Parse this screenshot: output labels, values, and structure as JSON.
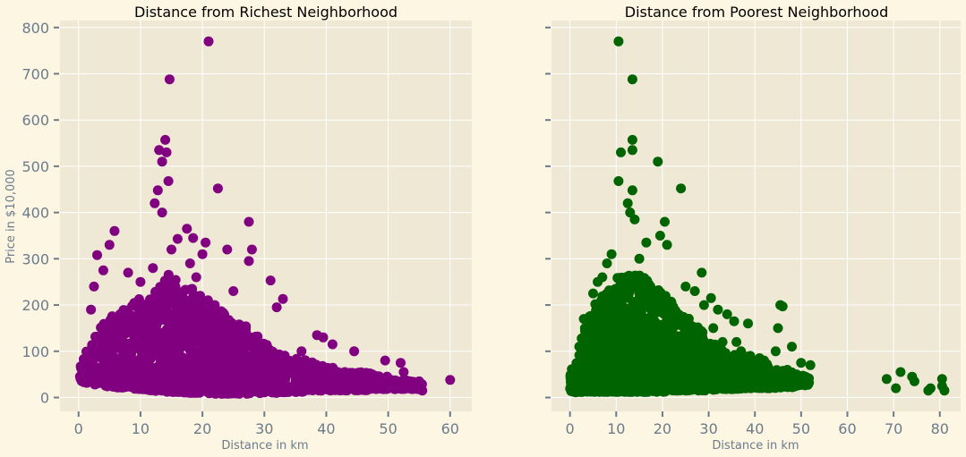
{
  "figure": {
    "background": "#fdf6e3",
    "plot_background": "#eee8d5",
    "grid_color": "#ffffff"
  },
  "chart_data": [
    {
      "type": "scatter",
      "title": "Distance from Richest Neighborhood",
      "xlabel": "Distance in km",
      "ylabel": "Price in $10,000",
      "xlim": [
        -3,
        63.5
      ],
      "ylim": [
        -30,
        815
      ],
      "xticks": [
        0,
        10,
        20,
        30,
        40,
        50,
        60
      ],
      "yticks": [
        0,
        100,
        200,
        300,
        400,
        500,
        600,
        700,
        800
      ],
      "grid": true,
      "color": "#800080",
      "series": [
        {
          "x": [
            21,
            14.7,
            14,
            13,
            14.2,
            13.5,
            14.5,
            22.5,
            12.8,
            12.3,
            13.5,
            27.5,
            5.8,
            16,
            17.5,
            18.5,
            20.5,
            3,
            5,
            4,
            24,
            28,
            27.5,
            31,
            33,
            25,
            2.5,
            8,
            10,
            2,
            15,
            20,
            32,
            36,
            38.5,
            39.5,
            41,
            44.5,
            49.5,
            52,
            52.5,
            53,
            55,
            55.5,
            60,
            47,
            43,
            35,
            30,
            28.5,
            26,
            24.5,
            22,
            19,
            17,
            15.5,
            11,
            9,
            7,
            6,
            4.5,
            3.5,
            1.5,
            0.5,
            1,
            2,
            12,
            18,
            23,
            29,
            34,
            37,
            40,
            42,
            45,
            48,
            51,
            53.5
          ],
          "y": [
            770,
            688,
            557,
            535,
            530,
            510,
            468,
            452,
            448,
            420,
            400,
            380,
            360,
            343,
            365,
            345,
            335,
            308,
            330,
            275,
            320,
            320,
            295,
            253,
            213,
            230,
            240,
            270,
            250,
            190,
            320,
            310,
            195,
            100,
            135,
            130,
            115,
            100,
            80,
            75,
            55,
            20,
            35,
            15,
            38,
            40,
            55,
            60,
            70,
            110,
            130,
            150,
            200,
            260,
            230,
            210,
            180,
            160,
            150,
            140,
            120,
            100,
            80,
            50,
            40,
            90,
            280,
            290,
            180,
            120,
            70,
            60,
            50,
            45,
            40,
            35,
            30,
            25
          ]
        }
      ],
      "bands": [
        {
          "x": [
            0,
            2,
            4,
            6,
            8,
            10,
            12,
            14,
            16,
            18,
            20,
            22,
            24,
            26,
            28,
            30,
            32,
            34,
            36,
            38,
            40,
            42,
            44,
            46,
            48,
            50,
            52,
            54,
            55.5
          ],
          "low": [
            35,
            30,
            25,
            22,
            20,
            18,
            15,
            12,
            12,
            10,
            10,
            8,
            8,
            8,
            8,
            10,
            10,
            12,
            12,
            15,
            15,
            15,
            15,
            15,
            18,
            18,
            18,
            18,
            18
          ],
          "high": [
            65,
            120,
            160,
            185,
            200,
            215,
            230,
            270,
            260,
            240,
            220,
            200,
            175,
            160,
            150,
            120,
            95,
            90,
            85,
            75,
            70,
            60,
            55,
            55,
            50,
            45,
            40,
            35,
            30
          ]
        }
      ]
    },
    {
      "type": "scatter",
      "title": "Distance from Poorest Neighborhood",
      "xlabel": "Distance in km",
      "ylabel": "",
      "xlim": [
        -4,
        84.5
      ],
      "ylim": [
        -30,
        815
      ],
      "xticks": [
        0,
        10,
        20,
        30,
        40,
        50,
        60,
        70,
        80
      ],
      "yticks": [
        0,
        100,
        200,
        300,
        400,
        500,
        600,
        700,
        800
      ],
      "grid": true,
      "color": "#006400",
      "series": [
        {
          "x": [
            10.5,
            13.5,
            13.5,
            13.5,
            19,
            11,
            10.5,
            13.5,
            24,
            12.5,
            13,
            14,
            20.5,
            28.5,
            21,
            15,
            16.5,
            19.5,
            8,
            9,
            30.5,
            32,
            34,
            35.5,
            38.5,
            45.5,
            46,
            45,
            48,
            50,
            52,
            44.5,
            41,
            36,
            68.5,
            71.5,
            70.5,
            74,
            74.5,
            77.5,
            78,
            80.5,
            80.5,
            81,
            5,
            3,
            2,
            1,
            0.5,
            6,
            7,
            25,
            27,
            29,
            31,
            33,
            37,
            39,
            42,
            47,
            49,
            51
          ],
          "y": [
            770,
            688,
            557,
            535,
            510,
            530,
            468,
            448,
            452,
            420,
            400,
            385,
            380,
            270,
            330,
            300,
            335,
            350,
            290,
            310,
            215,
            190,
            180,
            165,
            160,
            200,
            197,
            150,
            110,
            75,
            70,
            100,
            85,
            120,
            40,
            55,
            20,
            45,
            35,
            15,
            20,
            40,
            25,
            15,
            225,
            170,
            110,
            60,
            40,
            250,
            260,
            240,
            230,
            200,
            150,
            120,
            100,
            90,
            80,
            60,
            50,
            40
          ]
        }
      ],
      "bands": [
        {
          "x": [
            0,
            2,
            4,
            6,
            8,
            10,
            12,
            14,
            16,
            18,
            20,
            22,
            24,
            26,
            28,
            30,
            32,
            34,
            36,
            38,
            40,
            42,
            44,
            46,
            48,
            50,
            52
          ],
          "low": [
            10,
            12,
            12,
            12,
            12,
            12,
            12,
            12,
            12,
            12,
            12,
            15,
            15,
            15,
            15,
            15,
            18,
            18,
            18,
            20,
            20,
            20,
            20,
            22,
            22,
            25,
            28
          ],
          "high": [
            55,
            110,
            180,
            210,
            230,
            260,
            260,
            270,
            260,
            240,
            230,
            210,
            180,
            170,
            150,
            130,
            110,
            100,
            95,
            90,
            80,
            75,
            65,
            60,
            55,
            50,
            40
          ]
        }
      ]
    }
  ]
}
